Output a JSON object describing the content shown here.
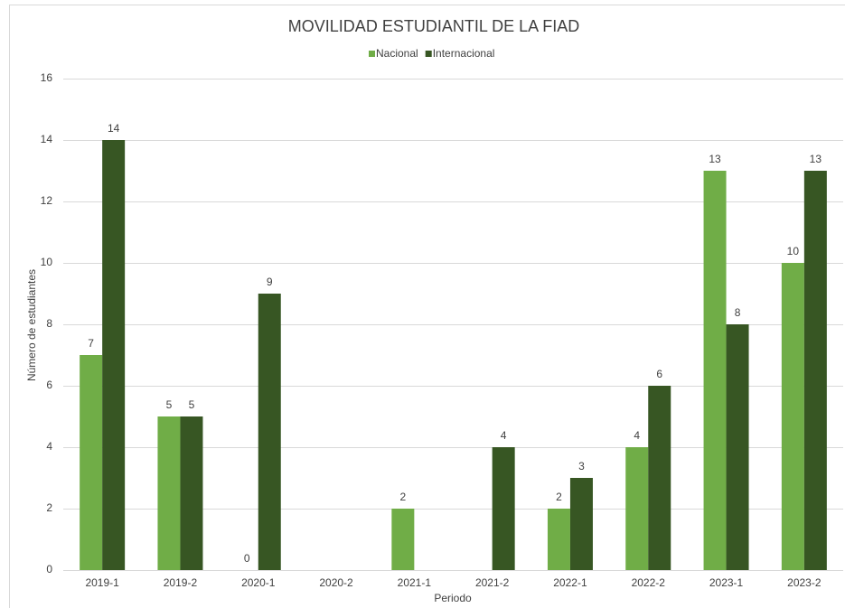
{
  "chart_data": {
    "type": "bar",
    "title": "MOVILIDAD ESTUDIANTIL DE LA FIAD",
    "x_label": "Periodo",
    "y_label": "Número de estudiantes",
    "categories": [
      "2019-1",
      "2019-2",
      "2020-1",
      "2020-2",
      "2021-1",
      "2021-2",
      "2022-1",
      "2022-2",
      "2023-1",
      "2023-2"
    ],
    "series": [
      {
        "name": "Nacional",
        "color": "#70ad47",
        "values": [
          7,
          5,
          0,
          null,
          2,
          null,
          2,
          4,
          13,
          10
        ]
      },
      {
        "name": "Internacional",
        "color": "#375623",
        "values": [
          14,
          5,
          9,
          null,
          null,
          4,
          3,
          6,
          8,
          13
        ]
      }
    ],
    "ylim": [
      0,
      16
    ],
    "yticks": [
      0,
      2,
      4,
      6,
      8,
      10,
      12,
      14,
      16
    ],
    "grid": true,
    "legend": "top"
  }
}
